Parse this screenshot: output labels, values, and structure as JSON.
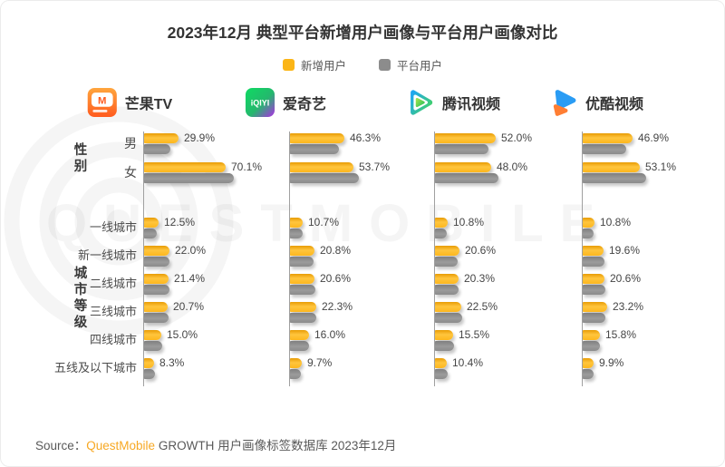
{
  "title": "2023年12月 典型平台新增用户画像与平台用户画像对比",
  "legend": [
    {
      "label": "新增用户",
      "color": "#fbb516"
    },
    {
      "label": "平台用户",
      "color": "#8c8c8c"
    }
  ],
  "colors": {
    "new_user_bar": "#fbb516",
    "platform_user_bar": "#8c8c8c",
    "brand_orange": "#f7a823",
    "text_dark": "#333333"
  },
  "icons": {
    "platform_logos": [
      "mgtv-logo",
      "iqiyi-logo",
      "tencent-video-logo",
      "youku-logo"
    ],
    "watermark": "questmobile-logo-watermark"
  },
  "watermark": {
    "text": "QUESTMOBILE"
  },
  "chart_data": {
    "type": "bar",
    "orientation": "horizontal",
    "unit": "percent",
    "value_axis_visible": false,
    "bar_value_labels": "shown for 新增用户 only; 平台用户 bars unlabeled (values estimated from bar lengths)",
    "series_names": [
      "新增用户",
      "平台用户"
    ],
    "groups": [
      {
        "section": "性别",
        "categories": [
          "男",
          "女"
        ]
      },
      {
        "section": "城市等级",
        "categories": [
          "一线城市",
          "新一线城市",
          "二线城市",
          "三线城市",
          "四线城市",
          "五线及以下城市"
        ]
      }
    ],
    "platforms": [
      {
        "name": "芒果TV",
        "new_user": {
          "gender": [
            29.9,
            70.1
          ],
          "city": [
            12.5,
            22.0,
            21.4,
            20.7,
            15.0,
            8.3
          ]
        },
        "platform_user_estimated": {
          "estimated": true,
          "gender": [
            22.5,
            77.5
          ],
          "city": [
            11.0,
            21.5,
            21.5,
            21.0,
            15.5,
            9.5
          ]
        }
      },
      {
        "name": "爱奇艺",
        "new_user": {
          "gender": [
            46.3,
            53.7
          ],
          "city": [
            10.7,
            20.8,
            20.6,
            22.3,
            16.0,
            9.7
          ]
        },
        "platform_user_estimated": {
          "estimated": true,
          "gender": [
            41.5,
            58.5
          ],
          "city": [
            10.5,
            20.0,
            21.5,
            22.5,
            16.0,
            9.5
          ]
        }
      },
      {
        "name": "腾讯视频",
        "new_user": {
          "gender": [
            52.0,
            48.0
          ],
          "city": [
            10.8,
            20.6,
            20.3,
            22.5,
            15.5,
            10.4
          ]
        },
        "platform_user_estimated": {
          "estimated": true,
          "gender": [
            46.0,
            54.0
          ],
          "city": [
            10.0,
            19.5,
            20.5,
            23.0,
            16.0,
            11.0
          ]
        }
      },
      {
        "name": "优酷视频",
        "new_user": {
          "gender": [
            46.9,
            53.1
          ],
          "city": [
            10.8,
            19.6,
            20.6,
            23.2,
            15.8,
            9.9
          ]
        },
        "platform_user_estimated": {
          "estimated": true,
          "gender": [
            40.5,
            59.5
          ],
          "city": [
            10.0,
            20.5,
            21.5,
            21.5,
            16.0,
            10.5
          ]
        }
      }
    ]
  },
  "source": {
    "prefix": "Source：",
    "brand": "QuestMobile",
    "rest": " GROWTH 用户画像标签数据库 2023年12月"
  }
}
